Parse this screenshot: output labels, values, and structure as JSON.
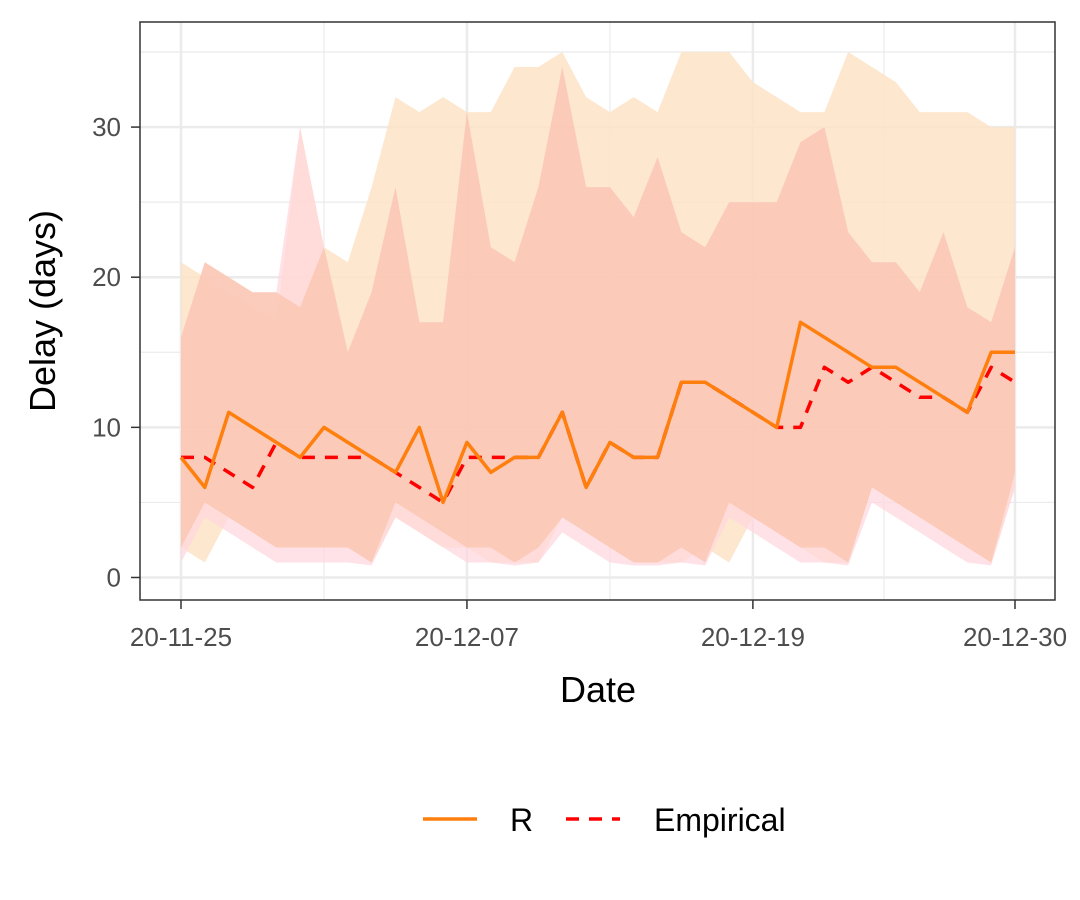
{
  "chart_data": {
    "type": "line",
    "xlabel": "Date",
    "ylabel": "Delay (days)",
    "x_ticks": [
      "20-11-25",
      "20-12-07",
      "20-12-19",
      "20-12-30"
    ],
    "y_ticks": [
      "0",
      "10",
      "20",
      "30"
    ],
    "ylim": [
      -1.5,
      37
    ],
    "grid": true,
    "legend_position": "bottom",
    "x": [
      "20-11-25",
      "20-11-26",
      "20-11-27",
      "20-11-28",
      "20-11-29",
      "20-11-30",
      "20-12-01",
      "20-12-02",
      "20-12-03",
      "20-12-04",
      "20-12-05",
      "20-12-06",
      "20-12-07",
      "20-12-08",
      "20-12-09",
      "20-12-10",
      "20-12-11",
      "20-12-12",
      "20-12-13",
      "20-12-14",
      "20-12-15",
      "20-12-16",
      "20-12-17",
      "20-12-18",
      "20-12-19",
      "20-12-20",
      "20-12-21",
      "20-12-22",
      "20-12-23",
      "20-12-24",
      "20-12-25",
      "20-12-26",
      "20-12-27",
      "20-12-28",
      "20-12-29",
      "20-12-30"
    ],
    "series": [
      {
        "name": "R",
        "color": "#ff7f0e",
        "style": "solid",
        "values": [
          8,
          6,
          11,
          10,
          9,
          8,
          10,
          9,
          8,
          7,
          10,
          5,
          9,
          7,
          8,
          8,
          11,
          6,
          9,
          8,
          8,
          13,
          13,
          12,
          11,
          10,
          17,
          16,
          15,
          14,
          14,
          13,
          12,
          11,
          15,
          15
        ],
        "ribbon_outer_upper": [
          21,
          20,
          19,
          18,
          17,
          30,
          22,
          21,
          26,
          32,
          31,
          32,
          31,
          31,
          34,
          34,
          35,
          32,
          31,
          32,
          31,
          35,
          35,
          35,
          33,
          32,
          31,
          31,
          35,
          34,
          33,
          31,
          31,
          31,
          30,
          30
        ],
        "ribbon_outer_lower": [
          2,
          1,
          4,
          3,
          2,
          2,
          2,
          2,
          1,
          4,
          3,
          2,
          2,
          1,
          1,
          1,
          4,
          3,
          2,
          1,
          1,
          1,
          2,
          1,
          4,
          3,
          2,
          1,
          1,
          6,
          5,
          4,
          3,
          2,
          1,
          6
        ],
        "ribbon_inner_upper": [
          16,
          21,
          20,
          19,
          19,
          18,
          22,
          15,
          19,
          26,
          17,
          17,
          31,
          22,
          21,
          26,
          34,
          26,
          26,
          24,
          28,
          23,
          22,
          25,
          25,
          25,
          29,
          30,
          23,
          21,
          21,
          19,
          23,
          18,
          17,
          22
        ],
        "ribbon_inner_lower": [
          2,
          5,
          4,
          3,
          2,
          2,
          2,
          2,
          1,
          5,
          4,
          3,
          2,
          2,
          1,
          2,
          4,
          3,
          2,
          1,
          1,
          2,
          1,
          5,
          4,
          3,
          2,
          2,
          1,
          6,
          5,
          4,
          3,
          2,
          1,
          7
        ]
      },
      {
        "name": "Empirical",
        "color": "#ff0000",
        "style": "dashed",
        "values": [
          8,
          8,
          7,
          6,
          9,
          8,
          8,
          8,
          8,
          7,
          6,
          5,
          8,
          8,
          8,
          8,
          11,
          6,
          9,
          8,
          8,
          13,
          13,
          12,
          11,
          10,
          10,
          14,
          13,
          14,
          13,
          12,
          12,
          11,
          14,
          13
        ]
      }
    ]
  }
}
